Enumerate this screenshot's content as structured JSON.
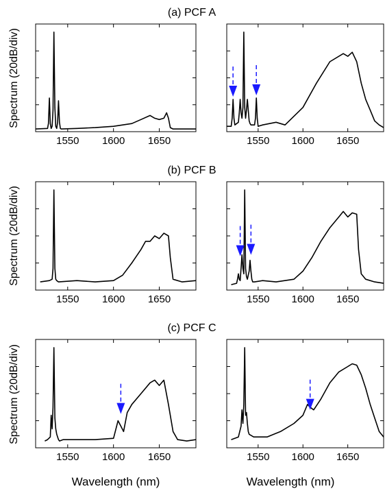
{
  "figure": {
    "ylabel": "Spectrum (20dB/div)",
    "xlabel": "Wavelength (nm)",
    "accent_color": "#1a1aff",
    "line_color": "#000000"
  },
  "chart_data": [
    {
      "type": "line",
      "row": 0,
      "col": 0,
      "title": "(a) PCF A",
      "ylabel": "Spectrum (20dB/div)",
      "xlabel": "",
      "xlim": [
        1515,
        1690
      ],
      "ylim": [
        0,
        4
      ],
      "xticks": [
        1550,
        1600,
        1650
      ],
      "yticks": [
        1,
        2,
        3,
        4
      ],
      "series": [
        {
          "x": [
            1515,
            1528,
            1529,
            1530,
            1531,
            1532,
            1533,
            1534,
            1535,
            1536,
            1537,
            1538,
            1539,
            1540,
            1541,
            1542,
            1543,
            1560,
            1580,
            1600,
            1620,
            1630,
            1640,
            1645,
            1650,
            1655,
            1658,
            1660,
            1662,
            1665,
            1690
          ],
          "y": [
            0.1,
            0.12,
            0.3,
            1.25,
            0.3,
            0.12,
            0.2,
            0.8,
            3.7,
            0.9,
            0.2,
            0.12,
            0.35,
            1.15,
            0.35,
            0.12,
            0.1,
            0.12,
            0.15,
            0.2,
            0.3,
            0.45,
            0.6,
            0.5,
            0.45,
            0.5,
            0.7,
            0.5,
            0.15,
            0.1,
            0.1
          ]
        }
      ],
      "annotations": []
    },
    {
      "type": "line",
      "row": 0,
      "col": 1,
      "title": "",
      "ylabel": "",
      "xlabel": "",
      "xlim": [
        1515,
        1690
      ],
      "ylim": [
        0,
        4
      ],
      "xticks": [
        1550,
        1600,
        1650
      ],
      "yticks": [
        1,
        2,
        3,
        4
      ],
      "series": [
        {
          "x": [
            1515,
            1520,
            1521,
            1522,
            1523,
            1524,
            1528,
            1529,
            1530,
            1531,
            1532,
            1533,
            1534,
            1535,
            1536,
            1537,
            1538,
            1539,
            1540,
            1541,
            1542,
            1546,
            1547,
            1548,
            1549,
            1550,
            1555,
            1570,
            1580,
            1600,
            1615,
            1630,
            1645,
            1650,
            1655,
            1660,
            1665,
            1670,
            1675,
            1680,
            1685,
            1690
          ],
          "y": [
            0.2,
            0.2,
            0.5,
            1.2,
            0.5,
            0.25,
            0.35,
            0.7,
            1.2,
            0.7,
            0.5,
            0.9,
            3.7,
            0.9,
            0.5,
            0.8,
            1.2,
            0.8,
            0.4,
            0.3,
            0.25,
            0.25,
            0.5,
            1.25,
            0.5,
            0.2,
            0.25,
            0.35,
            0.25,
            0.9,
            1.8,
            2.6,
            2.9,
            2.8,
            2.95,
            2.6,
            1.8,
            1.2,
            0.8,
            0.4,
            0.25,
            0.15
          ]
        }
      ],
      "annotations": [
        {
          "type": "arrow",
          "x": 1522,
          "y": 1.25
        },
        {
          "type": "arrow",
          "x": 1548,
          "y": 1.3
        }
      ]
    },
    {
      "type": "line",
      "row": 1,
      "col": 0,
      "title": "(b) PCF B",
      "ylabel": "Spectrum (20dB/div)",
      "xlabel": "",
      "xlim": [
        1515,
        1690
      ],
      "ylim": [
        0,
        4
      ],
      "xticks": [
        1550,
        1600,
        1650
      ],
      "yticks": [
        1,
        2,
        3,
        4
      ],
      "series": [
        {
          "x": [
            1520,
            1530,
            1533,
            1534,
            1535,
            1536,
            1537,
            1538,
            1540,
            1560,
            1580,
            1600,
            1610,
            1620,
            1630,
            1635,
            1640,
            1645,
            1650,
            1655,
            1660,
            1662,
            1665,
            1675,
            1690
          ],
          "y": [
            0.3,
            0.35,
            0.4,
            0.8,
            3.7,
            0.8,
            0.4,
            0.35,
            0.3,
            0.35,
            0.3,
            0.35,
            0.55,
            1.0,
            1.5,
            1.8,
            1.8,
            2.0,
            1.9,
            2.1,
            2.0,
            1.2,
            0.4,
            0.3,
            0.35
          ]
        }
      ],
      "annotations": []
    },
    {
      "type": "line",
      "row": 1,
      "col": 1,
      "title": "",
      "ylabel": "",
      "xlabel": "",
      "xlim": [
        1515,
        1690
      ],
      "ylim": [
        0,
        4
      ],
      "xticks": [
        1550,
        1600,
        1650
      ],
      "yticks": [
        1,
        2,
        3,
        4
      ],
      "series": [
        {
          "x": [
            1520,
            1526,
            1527,
            1528,
            1529,
            1530,
            1531,
            1532,
            1533,
            1534,
            1535,
            1536,
            1537,
            1538,
            1540,
            1541,
            1542,
            1543,
            1544,
            1546,
            1555,
            1570,
            1590,
            1600,
            1610,
            1620,
            1630,
            1640,
            1645,
            1650,
            1655,
            1660,
            1662,
            1665,
            1670,
            1680,
            1690
          ],
          "y": [
            0.2,
            0.25,
            0.4,
            0.6,
            0.4,
            0.35,
            0.8,
            1.3,
            0.8,
            0.6,
            3.7,
            0.8,
            0.5,
            0.4,
            0.7,
            1.1,
            0.7,
            0.4,
            0.3,
            0.3,
            0.35,
            0.3,
            0.4,
            0.7,
            1.2,
            1.8,
            2.3,
            2.7,
            2.9,
            2.7,
            2.85,
            2.8,
            1.5,
            0.6,
            0.4,
            0.3,
            0.25
          ]
        }
      ],
      "annotations": [
        {
          "type": "arrow",
          "x": 1530,
          "y": 1.2
        },
        {
          "type": "arrow",
          "x": 1542,
          "y": 1.25
        }
      ]
    },
    {
      "type": "line",
      "row": 2,
      "col": 0,
      "title": "(c) PCF C",
      "ylabel": "Spectrum (20dB/div)",
      "xlabel": "Wavelength (nm)",
      "xlim": [
        1515,
        1690
      ],
      "ylim": [
        0,
        4
      ],
      "xticks": [
        1550,
        1600,
        1650
      ],
      "yticks": [
        1,
        2,
        3,
        4
      ],
      "series": [
        {
          "x": [
            1525,
            1528,
            1531,
            1532,
            1533,
            1534,
            1535,
            1536,
            1537,
            1538,
            1539,
            1540,
            1541,
            1545,
            1560,
            1580,
            1600,
            1605,
            1608,
            1611,
            1615,
            1620,
            1630,
            1640,
            1645,
            1650,
            1655,
            1660,
            1665,
            1670,
            1680,
            1690
          ],
          "y": [
            0.25,
            0.3,
            0.4,
            1.2,
            0.7,
            1.5,
            3.7,
            1.1,
            0.7,
            0.5,
            0.4,
            0.3,
            0.25,
            0.3,
            0.3,
            0.3,
            0.35,
            1.0,
            0.8,
            0.6,
            1.3,
            1.6,
            2.0,
            2.4,
            2.5,
            2.3,
            2.5,
            1.6,
            0.6,
            0.3,
            0.25,
            0.3
          ]
        }
      ],
      "annotations": [
        {
          "type": "arrow",
          "x": 1608,
          "y": 1.2
        }
      ]
    },
    {
      "type": "line",
      "row": 2,
      "col": 1,
      "title": "",
      "ylabel": "",
      "xlabel": "Wavelength (nm)",
      "xlim": [
        1515,
        1690
      ],
      "ylim": [
        0,
        4
      ],
      "xticks": [
        1550,
        1600,
        1650
      ],
      "yticks": [
        1,
        2,
        3,
        4
      ],
      "series": [
        {
          "x": [
            1520,
            1528,
            1531,
            1532,
            1533,
            1534,
            1535,
            1536,
            1537,
            1538,
            1539,
            1540,
            1545,
            1560,
            1575,
            1590,
            1600,
            1605,
            1608,
            1612,
            1620,
            1630,
            1640,
            1650,
            1655,
            1660,
            1665,
            1670,
            1675,
            1680,
            1685,
            1690
          ],
          "y": [
            0.3,
            0.4,
            0.8,
            1.4,
            0.9,
            1.6,
            3.7,
            1.2,
            1.3,
            0.9,
            0.6,
            0.5,
            0.4,
            0.4,
            0.6,
            0.9,
            1.2,
            1.6,
            1.5,
            1.4,
            1.8,
            2.4,
            2.8,
            3.0,
            3.1,
            3.05,
            2.7,
            2.2,
            1.6,
            1.1,
            0.6,
            0.4
          ]
        }
      ],
      "annotations": [
        {
          "type": "arrow",
          "x": 1608,
          "y": 1.35
        }
      ]
    }
  ]
}
